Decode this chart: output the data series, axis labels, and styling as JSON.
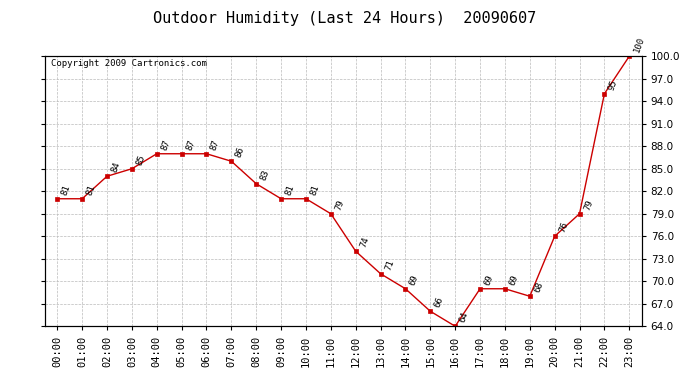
{
  "title": "Outdoor Humidity (Last 24 Hours)  20090607",
  "copyright": "Copyright 2009 Cartronics.com",
  "x_labels": [
    "00:00",
    "01:00",
    "02:00",
    "03:00",
    "04:00",
    "05:00",
    "06:00",
    "07:00",
    "08:00",
    "09:00",
    "10:00",
    "11:00",
    "12:00",
    "13:00",
    "14:00",
    "15:00",
    "16:00",
    "17:00",
    "18:00",
    "19:00",
    "20:00",
    "21:00",
    "22:00",
    "23:00"
  ],
  "y_values": [
    81,
    81,
    84,
    85,
    87,
    87,
    87,
    86,
    83,
    81,
    81,
    79,
    74,
    71,
    69,
    66,
    64,
    69,
    69,
    68,
    76,
    79,
    95,
    100
  ],
  "ylim_min": 64.0,
  "ylim_max": 100.0,
  "ytick_interval": 3.0,
  "line_color": "#cc0000",
  "marker_color": "#cc0000",
  "bg_color": "#ffffff",
  "grid_color": "#bbbbbb",
  "title_fontsize": 11,
  "copyright_fontsize": 6.5,
  "label_fontsize": 6.5,
  "tick_fontsize": 7.5
}
